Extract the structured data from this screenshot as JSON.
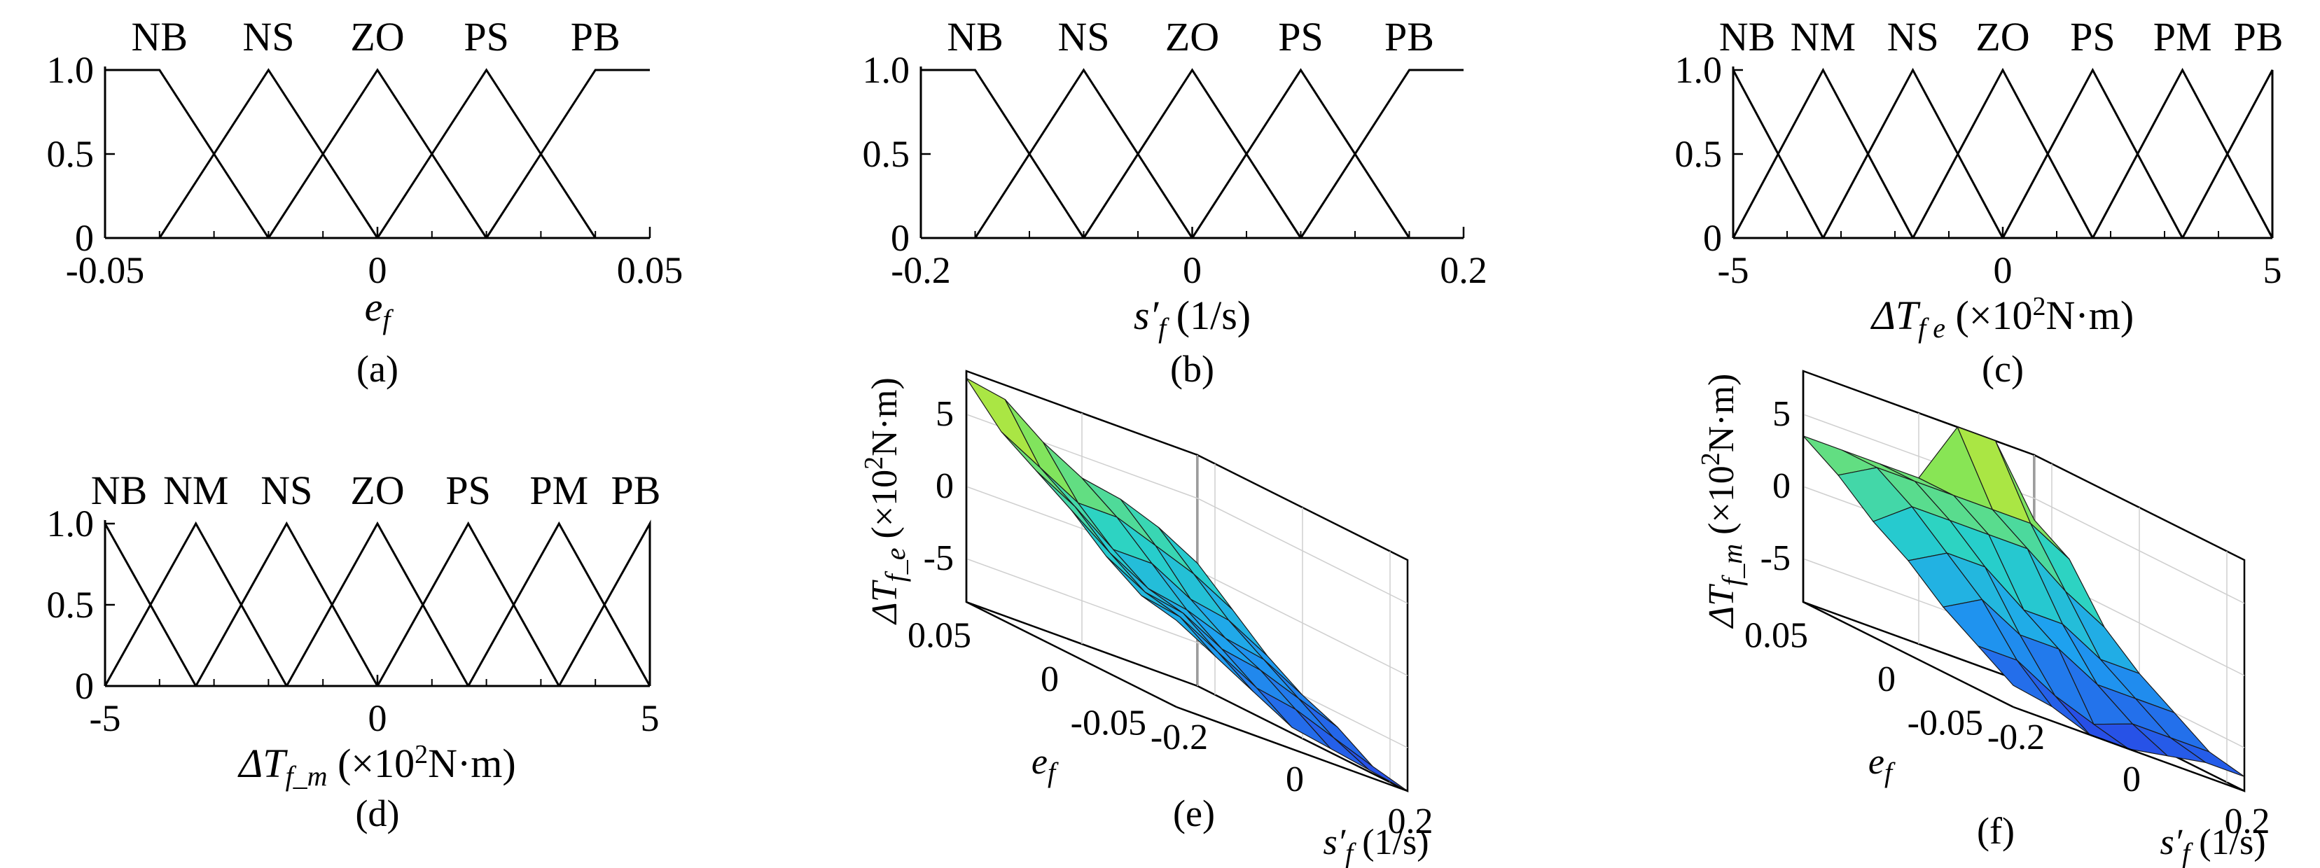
{
  "charts": {
    "a": {
      "type": "line",
      "variant": "membership-function",
      "caption": "(a)",
      "xlabel": "e",
      "xlabel_sub": "f",
      "xlim": [
        -0.05,
        0.05
      ],
      "ylim": [
        0,
        1
      ],
      "xticks": [
        "-0.05",
        "0",
        "0.05"
      ],
      "xtick_values": [
        -0.05,
        0,
        0.05
      ],
      "yticks": [
        "0",
        "0.5",
        "1.0"
      ],
      "ytick_values": [
        0,
        0.5,
        1
      ],
      "minor_x": [
        -0.04,
        -0.03,
        -0.02,
        -0.01,
        0.01,
        0.02,
        0.03,
        0.04
      ],
      "sets": [
        {
          "label": "NB",
          "x": [
            -0.05,
            -0.04,
            -0.02
          ],
          "y": [
            1,
            1,
            0
          ]
        },
        {
          "label": "NS",
          "x": [
            -0.04,
            -0.02,
            0
          ],
          "y": [
            0,
            1,
            0
          ]
        },
        {
          "label": "ZO",
          "x": [
            -0.02,
            0,
            0.02
          ],
          "y": [
            0,
            1,
            0
          ]
        },
        {
          "label": "PS",
          "x": [
            0,
            0.02,
            0.04
          ],
          "y": [
            0,
            1,
            0
          ]
        },
        {
          "label": "PB",
          "x": [
            0.02,
            0.04,
            0.05
          ],
          "y": [
            0,
            1,
            1
          ]
        }
      ],
      "label_x": [
        -0.04,
        -0.02,
        0,
        0.02,
        0.04
      ]
    },
    "b": {
      "type": "line",
      "variant": "membership-function",
      "caption": "(b)",
      "xlabel": "s′",
      "xlabel_sub": "f",
      "xlabel_unit": " (1/s)",
      "xlim": [
        -0.2,
        0.2
      ],
      "ylim": [
        0,
        1
      ],
      "xticks": [
        "-0.2",
        "0",
        "0.2"
      ],
      "xtick_values": [
        -0.2,
        0,
        0.2
      ],
      "yticks": [
        "0",
        "0.5",
        "1.0"
      ],
      "ytick_values": [
        0,
        0.5,
        1
      ],
      "minor_x": [
        -0.16,
        -0.12,
        -0.08,
        -0.04,
        0.04,
        0.08,
        0.12,
        0.16
      ],
      "sets": [
        {
          "label": "NB",
          "x": [
            -0.2,
            -0.16,
            -0.08
          ],
          "y": [
            1,
            1,
            0
          ]
        },
        {
          "label": "NS",
          "x": [
            -0.16,
            -0.08,
            0
          ],
          "y": [
            0,
            1,
            0
          ]
        },
        {
          "label": "ZO",
          "x": [
            -0.08,
            0,
            0.08
          ],
          "y": [
            0,
            1,
            0
          ]
        },
        {
          "label": "PS",
          "x": [
            0,
            0.08,
            0.16
          ],
          "y": [
            0,
            1,
            0
          ]
        },
        {
          "label": "PB",
          "x": [
            0.08,
            0.16,
            0.2
          ],
          "y": [
            0,
            1,
            1
          ]
        }
      ],
      "label_x": [
        -0.16,
        -0.08,
        0,
        0.08,
        0.16
      ]
    },
    "c": {
      "type": "line",
      "variant": "membership-function",
      "caption": "(c)",
      "xlabel": "ΔT",
      "xlabel_sub": "f e",
      "xlabel_unit": " (×10",
      "xlabel_sup": "2",
      "xlabel_unit2": "N·m)",
      "xlim": [
        -5,
        5
      ],
      "ylim": [
        0,
        1
      ],
      "xticks": [
        "-5",
        "0",
        "5"
      ],
      "xtick_values": [
        -5,
        0,
        5
      ],
      "yticks": [
        "0",
        "0.5",
        "1.0"
      ],
      "ytick_values": [
        0,
        0.5,
        1
      ],
      "minor_x": [
        -4,
        -3,
        -2,
        -1,
        1,
        2,
        3,
        4
      ],
      "sets": [
        {
          "label": "NB",
          "x": [
            -5,
            -5,
            -3.333
          ],
          "y": [
            0,
            1,
            0
          ]
        },
        {
          "label": "NM",
          "x": [
            -5,
            -3.333,
            -1.667
          ],
          "y": [
            0,
            1,
            0
          ]
        },
        {
          "label": "NS",
          "x": [
            -3.333,
            -1.667,
            0
          ],
          "y": [
            0,
            1,
            0
          ]
        },
        {
          "label": "ZO",
          "x": [
            -1.667,
            0,
            1.667
          ],
          "y": [
            0,
            1,
            0
          ]
        },
        {
          "label": "PS",
          "x": [
            0,
            1.667,
            3.333
          ],
          "y": [
            0,
            1,
            0
          ]
        },
        {
          "label": "PM",
          "x": [
            1.667,
            3.333,
            5
          ],
          "y": [
            0,
            1,
            0
          ]
        },
        {
          "label": "PB",
          "x": [
            3.333,
            5,
            5
          ],
          "y": [
            0,
            1,
            0
          ]
        }
      ],
      "label_x": [
        -5,
        -3.333,
        -1.667,
        0,
        1.667,
        3.333,
        5
      ]
    },
    "d": {
      "type": "line",
      "variant": "membership-function",
      "caption": "(d)",
      "xlabel": "ΔT",
      "xlabel_sub": "f_m",
      "xlabel_unit": " (×10",
      "xlabel_sup": "2",
      "xlabel_unit2": "N·m)",
      "xlim": [
        -5,
        5
      ],
      "ylim": [
        0,
        1
      ],
      "xticks": [
        "-5",
        "0",
        "5"
      ],
      "xtick_values": [
        -5,
        0,
        5
      ],
      "yticks": [
        "0",
        "0.5",
        "1.0"
      ],
      "ytick_values": [
        0,
        0.5,
        1
      ],
      "minor_x": [
        -4,
        -3,
        -2,
        -1,
        1,
        2,
        3,
        4
      ],
      "sets": [
        {
          "label": "NB",
          "x": [
            -5,
            -5,
            -3.333
          ],
          "y": [
            0,
            1,
            0
          ]
        },
        {
          "label": "NM",
          "x": [
            -5,
            -3.333,
            -1.667
          ],
          "y": [
            0,
            1,
            0
          ]
        },
        {
          "label": "NS",
          "x": [
            -3.333,
            -1.667,
            0
          ],
          "y": [
            0,
            1,
            0
          ]
        },
        {
          "label": "ZO",
          "x": [
            -1.667,
            0,
            1.667
          ],
          "y": [
            0,
            1,
            0
          ]
        },
        {
          "label": "PS",
          "x": [
            0,
            1.667,
            3.333
          ],
          "y": [
            0,
            1,
            0
          ]
        },
        {
          "label": "PM",
          "x": [
            1.667,
            3.333,
            5
          ],
          "y": [
            0,
            1,
            0
          ]
        },
        {
          "label": "PB",
          "x": [
            3.333,
            5,
            5
          ],
          "y": [
            0,
            1,
            0
          ]
        }
      ],
      "label_x": [
        -5,
        -3.333,
        -1.667,
        0,
        1.667,
        3.333,
        5
      ]
    },
    "e": {
      "type": "heatmap",
      "variant": "3d-surface",
      "caption": "(e)",
      "zlabel": "ΔT",
      "zlabel_sub": "f_e",
      "zlabel_unit": " (×10",
      "zlabel_sup": "2",
      "zlabel_unit2": "N·m)",
      "xlabel": "e",
      "xlabel_sub": "f",
      "ylabel": "s′",
      "ylabel_sub": "f",
      "ylabel_unit": " (1/s)",
      "e_ticks": [
        "0.05",
        "0",
        "-0.05"
      ],
      "e_tick_values": [
        0.05,
        0,
        -0.05
      ],
      "s_ticks": [
        "-0.2",
        "0",
        "0.2"
      ],
      "s_tick_values": [
        -0.2,
        0,
        0.2
      ],
      "z_ticks": [
        "5",
        "0",
        "-5"
      ],
      "z_tick_values": [
        5,
        0,
        -5
      ],
      "elim": [
        -0.06,
        0.06
      ],
      "slim": [
        -0.2,
        0.2
      ],
      "zlim": [
        -8,
        8
      ],
      "e_grid": [
        0.06,
        0.04,
        0.02,
        0,
        -0.02,
        -0.04,
        -0.06
      ],
      "s_grid": [
        -0.2,
        -0.133,
        -0.067,
        0,
        0.067,
        0.133,
        0.2
      ],
      "z": [
        [
          7.5,
          7,
          5,
          3.5,
          3,
          2,
          0.5
        ],
        [
          5,
          3.5,
          2,
          2,
          1,
          0,
          -1.5
        ],
        [
          3.5,
          2,
          0,
          0,
          -1.5,
          -2,
          -3.5
        ],
        [
          2,
          0,
          -1.5,
          -2,
          -3,
          -3.5,
          -5
        ],
        [
          0,
          -1.5,
          -2,
          -3.5,
          -4,
          -5,
          -6
        ],
        [
          -1.5,
          -2,
          -3.5,
          -5,
          -5.5,
          -6.5,
          -7.5
        ],
        [
          -2,
          -3.5,
          -5,
          -6.5,
          -7,
          -7.5,
          -8
        ]
      ]
    },
    "f": {
      "type": "heatmap",
      "variant": "3d-surface",
      "caption": "(f)",
      "zlabel": "ΔT",
      "zlabel_sub": "f_m",
      "zlabel_unit": " (×10",
      "zlabel_sup": "2",
      "zlabel_unit2": "N·m)",
      "xlabel": "e",
      "xlabel_sub": "f",
      "ylabel": "s′",
      "ylabel_sub": "f",
      "ylabel_unit": " (1/s)",
      "e_ticks": [
        "0.05",
        "0",
        "-0.05"
      ],
      "e_tick_values": [
        0.05,
        0,
        -0.05
      ],
      "s_ticks": [
        "-0.2",
        "0",
        "0.2"
      ],
      "s_tick_values": [
        -0.2,
        0,
        0.2
      ],
      "z_ticks": [
        "5",
        "0",
        "-5"
      ],
      "z_tick_values": [
        5,
        0,
        -5
      ],
      "elim": [
        -0.06,
        0.06
      ],
      "slim": [
        -0.2,
        0.2
      ],
      "zlim": [
        -8,
        8
      ],
      "e_grid": [
        0.06,
        0.04,
        0.02,
        0,
        -0.02,
        -0.04,
        -0.06
      ],
      "s_grid": [
        -0.2,
        -0.133,
        -0.067,
        0,
        0.067,
        0.133,
        0.2
      ],
      "z": [
        [
          3.5,
          3.5,
          3.5,
          3.5,
          8,
          8,
          3.5
        ],
        [
          2,
          3.5,
          3.5,
          3.5,
          3.5,
          3.5,
          2
        ],
        [
          0,
          2,
          2,
          2,
          2,
          0,
          -1.5
        ],
        [
          -1.5,
          0,
          0,
          -2,
          -2,
          -3.5,
          -3.5
        ],
        [
          -3.5,
          -2,
          -3.5,
          -3.5,
          -5,
          -5,
          -5
        ],
        [
          -5,
          -5,
          -6.5,
          -7.5,
          -6.5,
          -6.5,
          -6.5
        ],
        [
          -6.5,
          -7,
          -8,
          -8,
          -7.5,
          -7,
          -7
        ]
      ]
    }
  }
}
